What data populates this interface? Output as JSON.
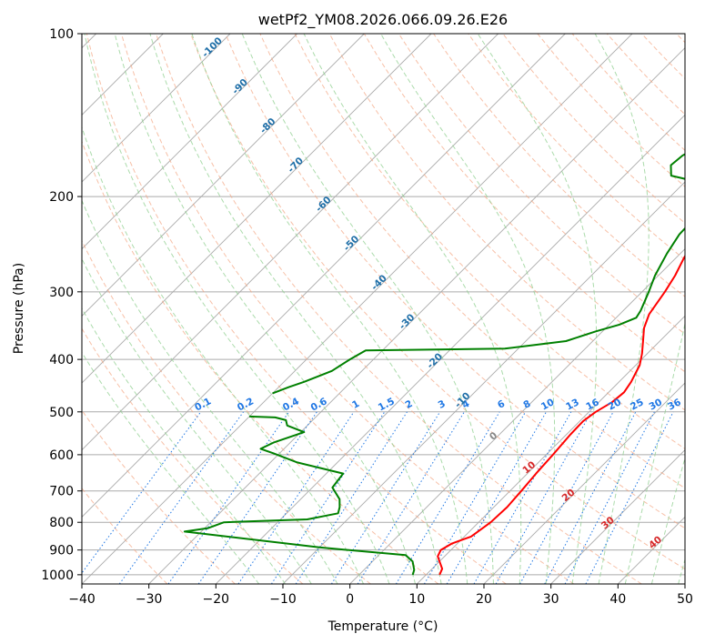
{
  "chart_data": {
    "type": "line",
    "title": "wetPf2_YM08.2026.066.09.26.E26",
    "xlabel": "Temperature (°C)",
    "ylabel": "Pressure (hPa)",
    "xlim": [
      -40,
      50
    ],
    "ylim": [
      1040,
      100
    ],
    "y_scale": "log",
    "x_ticks": [
      -40,
      -30,
      -20,
      -10,
      0,
      10,
      20,
      30,
      40,
      50
    ],
    "x_tick_labels": [
      "−40",
      "−30",
      "−20",
      "−10",
      "0",
      "10",
      "20",
      "30",
      "40",
      "50"
    ],
    "y_ticks": [
      100,
      200,
      300,
      400,
      500,
      600,
      700,
      800,
      900,
      1000
    ],
    "y_tick_labels": [
      "100",
      "200",
      "300",
      "400",
      "500",
      "600",
      "700",
      "800",
      "900",
      "1000"
    ],
    "grid": true,
    "series": [
      {
        "color": "#ff0000",
        "points": [
          [
            12,
            1000
          ],
          [
            11.5,
            975
          ],
          [
            9,
            925
          ],
          [
            8.5,
            900
          ],
          [
            9.2,
            875
          ],
          [
            11,
            850
          ],
          [
            11.8,
            800
          ],
          [
            12,
            750
          ],
          [
            11.7,
            700
          ],
          [
            11.3,
            650
          ],
          [
            11,
            600
          ],
          [
            10.6,
            550
          ],
          [
            10.5,
            520
          ],
          [
            11,
            500
          ],
          [
            12,
            480
          ],
          [
            12.3,
            460
          ],
          [
            11.8,
            440
          ],
          [
            10.6,
            410
          ],
          [
            9.2,
            390
          ],
          [
            7.5,
            370
          ],
          [
            5.7,
            350
          ],
          [
            4.4,
            330
          ],
          [
            3.4,
            300
          ],
          [
            2.5,
            280
          ],
          [
            1.2,
            260
          ],
          [
            -0.5,
            230
          ],
          [
            -1.5,
            210
          ],
          [
            -2.2,
            200
          ],
          [
            -1.5,
            195
          ],
          [
            0.5,
            188
          ],
          [
            3,
            180
          ],
          [
            6,
            173
          ],
          [
            8.5,
            165
          ],
          [
            10.5,
            155
          ],
          [
            11.5,
            145
          ],
          [
            14,
            130
          ],
          [
            17.5,
            115
          ],
          [
            20.7,
            100
          ]
        ]
      },
      {
        "color": "#008000",
        "points": [
          [
            8,
            1000
          ],
          [
            7.5,
            980
          ],
          [
            6,
            945
          ],
          [
            4,
            920
          ],
          [
            -10,
            890
          ],
          [
            -32.5,
            832
          ],
          [
            -29.5,
            820
          ],
          [
            -28,
            800
          ],
          [
            -16,
            790
          ],
          [
            -12.3,
            770
          ],
          [
            -13,
            750
          ],
          [
            -14.2,
            725
          ],
          [
            -17,
            690
          ],
          [
            -17.5,
            650
          ],
          [
            -26,
            620
          ],
          [
            -31,
            596
          ],
          [
            -33.5,
            585
          ],
          [
            -32.5,
            570
          ],
          [
            -29.5,
            545
          ],
          [
            -33,
            530
          ],
          [
            -34,
            518
          ],
          [
            -36,
            512
          ],
          [
            -40,
            510
          ]
        ]
      },
      {
        "color": "#008000",
        "points": [
          [
            -40,
            462
          ],
          [
            -38.5,
            450
          ],
          [
            -37,
            440
          ],
          [
            -34.5,
            420
          ],
          [
            -33.5,
            400
          ],
          [
            -32.5,
            385
          ],
          [
            -12,
            382
          ],
          [
            -4,
            370
          ],
          [
            -1,
            355
          ],
          [
            1.5,
            345
          ],
          [
            3,
            335
          ],
          [
            2.6,
            325
          ],
          [
            1,
            300
          ],
          [
            -0.5,
            280
          ],
          [
            -2,
            255
          ],
          [
            -3,
            235
          ],
          [
            -3.2,
            215
          ],
          [
            -3.1,
            205
          ],
          [
            -4,
            196
          ],
          [
            -8,
            188
          ],
          [
            -11,
            185
          ],
          [
            -13,
            183
          ],
          [
            -14.6,
            175
          ],
          [
            -14.3,
            168
          ],
          [
            -13,
            160
          ],
          [
            -11.8,
            150
          ],
          [
            -11,
            140
          ],
          [
            -9.5,
            130
          ],
          [
            -7.5,
            120
          ],
          [
            -5.5,
            112
          ],
          [
            -3.5,
            106
          ],
          [
            0.5,
            100
          ]
        ]
      }
    ],
    "dry_adiabat_labels": [
      "-100",
      "-90",
      "-80",
      "-70",
      "-60",
      "-50",
      "-40",
      "-30",
      "-20",
      "-10"
    ],
    "mixing_ratio_labels": [
      "0.1",
      "0.2",
      "0.4",
      "0.6",
      "1",
      "1.5",
      "2",
      "3",
      "4",
      "6",
      "8",
      "10",
      "13",
      "16",
      "20",
      "25",
      "30",
      "36"
    ],
    "moist_adiabat_labels": [
      "0",
      "10",
      "20",
      "30",
      "40"
    ],
    "colors": {
      "temperature": "#ff0000",
      "dewpoint": "#008000",
      "isotherm": "#aaaaaa",
      "isobar": "#aaaaaa",
      "dry_adiabat": "#f4a582",
      "moist_adiabat": "#8fcf8f",
      "mixing_ratio": "#1f77e4",
      "dry_label": "#1f6fa8",
      "moist_label": "#d62728"
    }
  }
}
